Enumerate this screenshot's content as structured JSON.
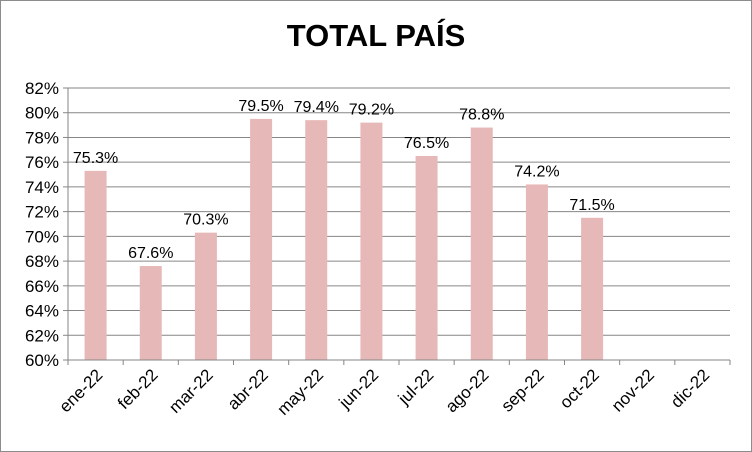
{
  "chart_data": {
    "type": "bar",
    "title": "TOTAL PAÍS",
    "xlabel": "",
    "ylabel": "",
    "categories": [
      "ene-22",
      "feb-22",
      "mar-22",
      "abr-22",
      "may-22",
      "jun-22",
      "jul-22",
      "ago-22",
      "sep-22",
      "oct-22",
      "nov-22",
      "dic-22"
    ],
    "values": [
      75.3,
      67.6,
      70.3,
      79.5,
      79.4,
      79.2,
      76.5,
      78.8,
      74.2,
      71.5,
      null,
      null
    ],
    "data_labels": [
      "75.3%",
      "67.6%",
      "70.3%",
      "79.5%",
      "79.4%",
      "79.2%",
      "76.5%",
      "78.8%",
      "74.2%",
      "71.5%",
      "",
      ""
    ],
    "ylim": [
      60,
      82
    ],
    "yticks": [
      "60%",
      "62%",
      "64%",
      "66%",
      "68%",
      "70%",
      "72%",
      "74%",
      "76%",
      "78%",
      "80%",
      "82%"
    ],
    "grid": true,
    "legend": "none",
    "bar_color": "#e6b9b8",
    "grid_color": "#868686"
  }
}
